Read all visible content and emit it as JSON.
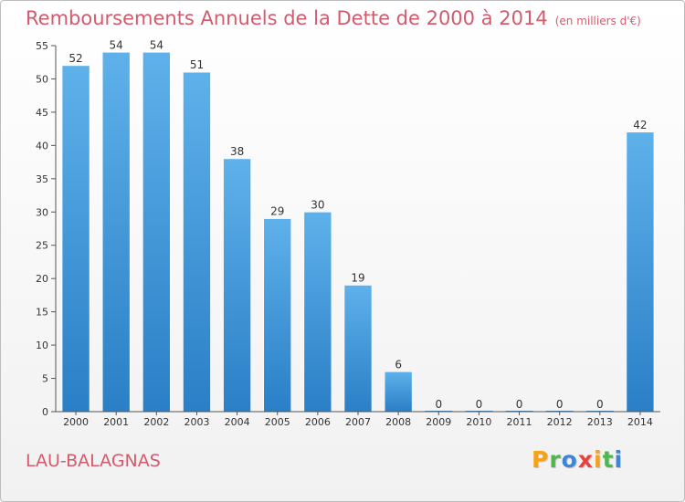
{
  "chart_data": {
    "type": "bar",
    "title": "Remboursements Annuels de la Dette de 2000 à 2014",
    "subtitle": "(en milliers d'€)",
    "categories": [
      "2000",
      "2001",
      "2002",
      "2003",
      "2004",
      "2005",
      "2006",
      "2007",
      "2008",
      "2009",
      "2010",
      "2011",
      "2012",
      "2013",
      "2014"
    ],
    "values": [
      52,
      54,
      54,
      51,
      38,
      29,
      30,
      19,
      6,
      0,
      0,
      0,
      0,
      0,
      42
    ],
    "ylim": [
      0,
      55
    ],
    "yticks": [
      0,
      5,
      10,
      15,
      20,
      25,
      30,
      35,
      40,
      45,
      50,
      55
    ],
    "grid": false,
    "bar_color": "#4a9fe0"
  },
  "footer": {
    "city": "LAU-BALAGNAS"
  },
  "logo": {
    "letters": [
      "P",
      "r",
      "o",
      "x",
      "i",
      "t",
      "i"
    ],
    "colors": [
      "#f5a21b",
      "#4db84e",
      "#3d86d6",
      "#e8433f",
      "#f5a21b",
      "#4db84e",
      "#3d86d6"
    ]
  }
}
